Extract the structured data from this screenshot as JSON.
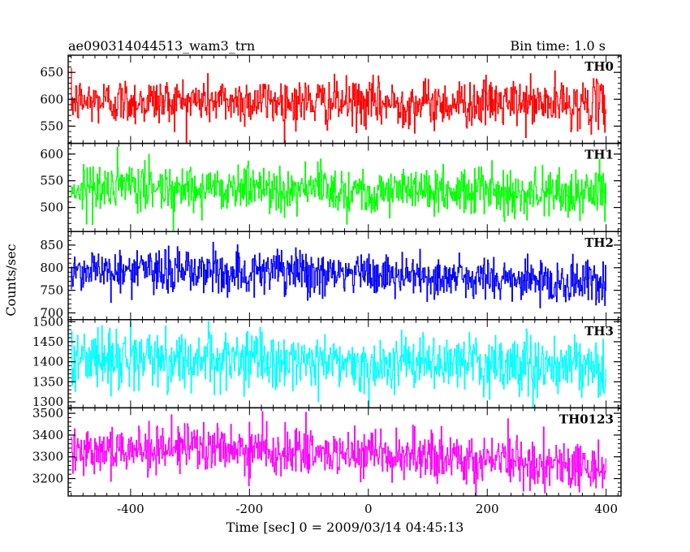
{
  "header": {
    "title": "ae090314044513_wam3_trn",
    "bin_time": "Bin time: 1.0 s"
  },
  "axes": {
    "ylabel": "Counts/sec",
    "xlabel": "Time [sec] 0 = 2009/03/14 04:45:13"
  },
  "chart_data": {
    "type": "line",
    "title": "ae090314044513_wam3_trn",
    "subtitle": "Bin time: 1.0 s",
    "xlabel": "Time [sec] 0 = 2009/03/14 04:45:13",
    "ylabel": "Counts/sec",
    "xlim": [
      -505,
      425
    ],
    "xticks": [
      -400,
      -200,
      0,
      200,
      400
    ],
    "x_range": [
      -500,
      400
    ],
    "x_step": 1,
    "grid": false,
    "legend": "none",
    "series": [
      {
        "name": "TH0",
        "color": "#ff0000",
        "ylim": [
          518,
          682
        ],
        "yticks": [
          550,
          600,
          650
        ],
        "mean": 595,
        "std": 22,
        "trend": [
          [
            -500,
            596
          ],
          [
            -200,
            597
          ],
          [
            0,
            592
          ],
          [
            200,
            593
          ],
          [
            400,
            590
          ]
        ]
      },
      {
        "name": "TH1",
        "color": "#00ff00",
        "ylim": [
          455,
          620
        ],
        "yticks": [
          500,
          550,
          600
        ],
        "mean": 535,
        "std": 22,
        "trend": [
          [
            -500,
            536
          ],
          [
            -200,
            538
          ],
          [
            0,
            532
          ],
          [
            200,
            530
          ],
          [
            400,
            525
          ]
        ]
      },
      {
        "name": "TH2",
        "color": "#0000ff",
        "ylim": [
          685,
          880
        ],
        "yticks": [
          700,
          750,
          800,
          850
        ],
        "mean": 785,
        "std": 25,
        "trend": [
          [
            -500,
            795
          ],
          [
            -200,
            790
          ],
          [
            0,
            785
          ],
          [
            200,
            775
          ],
          [
            400,
            765
          ]
        ]
      },
      {
        "name": "TH3",
        "color": "#00ffff",
        "ylim": [
          1285,
          1505
        ],
        "yticks": [
          1300,
          1350,
          1400,
          1450,
          1500
        ],
        "mean": 1400,
        "std": 35,
        "trend": [
          [
            -500,
            1410
          ],
          [
            -200,
            1405
          ],
          [
            0,
            1395
          ],
          [
            200,
            1395
          ],
          [
            400,
            1380
          ]
        ]
      },
      {
        "name": "TH0123",
        "color": "#ff00ff",
        "ylim": [
          3120,
          3525
        ],
        "yticks": [
          3200,
          3300,
          3400,
          3500
        ],
        "mean": 3320,
        "std": 55,
        "trend": [
          [
            -500,
            3340
          ],
          [
            -200,
            3335
          ],
          [
            0,
            3300
          ],
          [
            200,
            3290
          ],
          [
            400,
            3245
          ]
        ]
      }
    ]
  }
}
